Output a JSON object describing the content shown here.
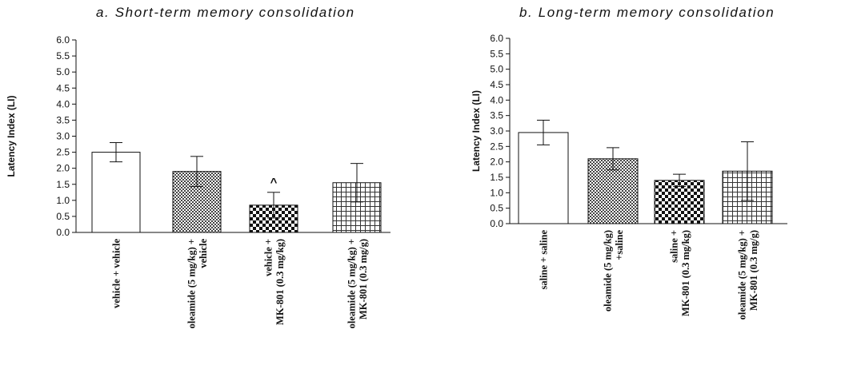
{
  "chart_data": [
    {
      "type": "bar",
      "title": "a. Short-term memory consolidation",
      "ylabel": "Latency Index (LI)",
      "xlabel": "",
      "ylim": [
        0,
        6.0
      ],
      "yticks": [
        "0.0",
        "0.5",
        "1.0",
        "1.5",
        "2.0",
        "2.5",
        "3.0",
        "3.5",
        "4.0",
        "4.5",
        "5.0",
        "5.5",
        "6.0"
      ],
      "grid": false,
      "categories": [
        [
          "vehicle + vehicle"
        ],
        [
          "oleamide (5 mg/kg) +",
          "vehicle"
        ],
        [
          "vehicle +",
          "MK-801 (0.3 mg/kg)"
        ],
        [
          "oleamide (5 mg/kg) +",
          "MK-801 (0.3 mg/g)"
        ]
      ],
      "values": [
        2.5,
        1.9,
        0.85,
        1.55
      ],
      "errors": [
        0.3,
        0.47,
        0.4,
        0.6
      ],
      "patterns": [
        "plain",
        "fine-checker",
        "checker",
        "grid"
      ],
      "annotations": [
        "",
        "",
        "^",
        ""
      ]
    },
    {
      "type": "bar",
      "title": "b. Long-term memory consolidation",
      "ylabel": "Latency Index (LI)",
      "xlabel": "",
      "ylim": [
        0,
        6.0
      ],
      "yticks": [
        "0.0",
        "0.5",
        "1.0",
        "1.5",
        "2.0",
        "2.5",
        "3.0",
        "3.5",
        "4.0",
        "4.5",
        "5.0",
        "5.5",
        "6.0"
      ],
      "grid": false,
      "categories": [
        [
          "saline + saline"
        ],
        [
          "oleamide (5 mg/kg)",
          "+saline"
        ],
        [
          "saline +",
          "MK-801 (0.3 mg/kg)"
        ],
        [
          "oleamide (5 mg/kg) +",
          "MK-801 (0.3 mg/g)"
        ]
      ],
      "values": [
        2.95,
        2.1,
        1.4,
        1.7
      ],
      "errors": [
        0.4,
        0.36,
        0.2,
        0.95
      ],
      "patterns": [
        "plain",
        "fine-checker",
        "checker",
        "grid"
      ],
      "annotations": [
        "",
        "",
        "",
        ""
      ]
    }
  ]
}
